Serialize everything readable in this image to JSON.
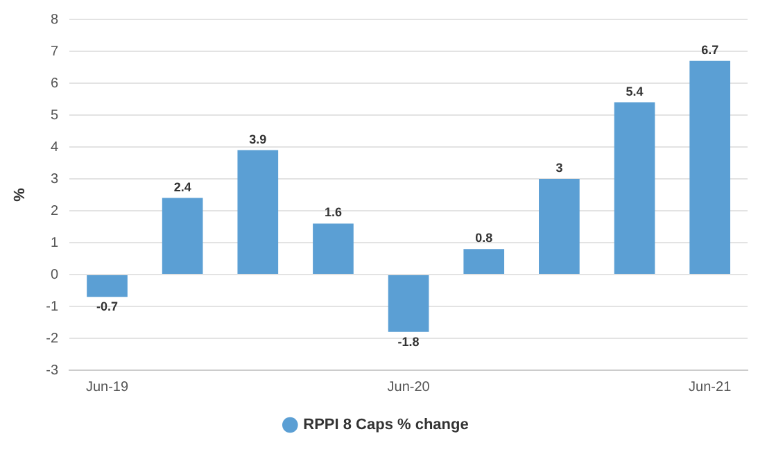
{
  "chart_data": {
    "type": "bar",
    "ylabel": "%",
    "categories": [
      "Jun-19",
      null,
      null,
      null,
      "Jun-20",
      null,
      null,
      null,
      "Jun-21"
    ],
    "series": [
      {
        "name": "RPPI 8 Caps % change",
        "color": "#5b9fd4",
        "values": [
          -0.7,
          2.4,
          3.9,
          1.6,
          -1.8,
          0.8,
          3,
          5.4,
          6.7
        ]
      }
    ],
    "ylim": [
      -3,
      8
    ],
    "yticks": [
      -3,
      -2,
      -1,
      0,
      1,
      2,
      3,
      4,
      5,
      6,
      7,
      8
    ],
    "grid": "y",
    "legend": "bottom",
    "data_labels": true
  }
}
